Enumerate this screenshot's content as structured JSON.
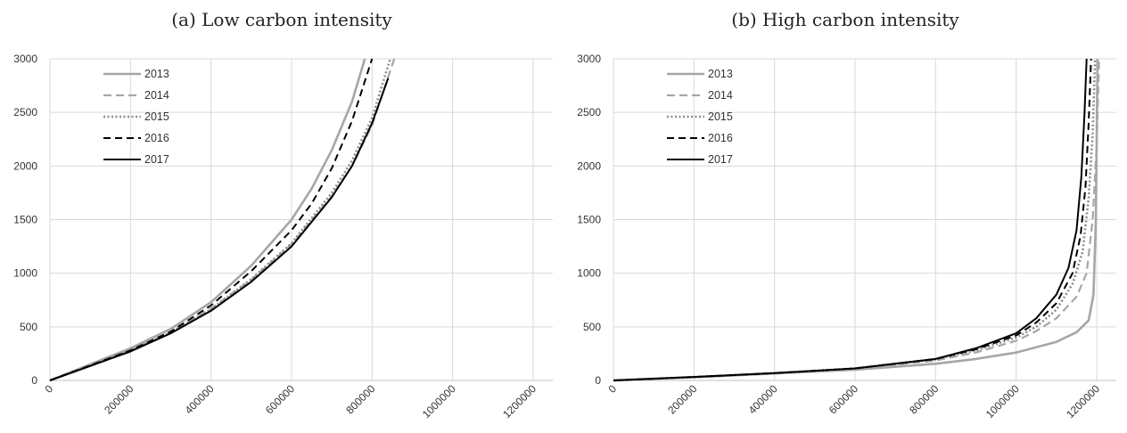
{
  "chart_data": [
    {
      "type": "line",
      "title": "(a) Low carbon intensity",
      "xlabel": "",
      "ylabel": "",
      "xlim": [
        0,
        1200000
      ],
      "ylim": [
        0,
        3000
      ],
      "xticks": [
        0,
        200000,
        400000,
        600000,
        800000,
        1000000,
        1200000
      ],
      "yticks": [
        0,
        500,
        1000,
        1500,
        2000,
        2500,
        3000
      ],
      "grid": true,
      "legend": "top-left",
      "series": [
        {
          "name": "2013",
          "style": "solid-gray",
          "x": [
            0,
            100000,
            200000,
            300000,
            400000,
            500000,
            600000,
            650000,
            700000,
            750000,
            782000
          ],
          "y": [
            0,
            150,
            300,
            480,
            730,
            1070,
            1500,
            1790,
            2150,
            2600,
            3000
          ]
        },
        {
          "name": "2014",
          "style": "dashed-gray",
          "x": [
            0,
            100000,
            200000,
            300000,
            400000,
            500000,
            600000,
            700000,
            750000,
            800000,
            855000
          ],
          "y": [
            0,
            140,
            280,
            450,
            670,
            940,
            1270,
            1720,
            2000,
            2380,
            3000
          ]
        },
        {
          "name": "2015",
          "style": "dotted-gray",
          "x": [
            0,
            100000,
            200000,
            300000,
            400000,
            500000,
            600000,
            700000,
            750000,
            800000,
            845000
          ],
          "y": [
            0,
            140,
            280,
            445,
            665,
            945,
            1280,
            1750,
            2050,
            2450,
            3000
          ]
        },
        {
          "name": "2016",
          "style": "dashed-black",
          "x": [
            0,
            100000,
            200000,
            300000,
            400000,
            500000,
            600000,
            650000,
            700000,
            750000,
            800000
          ],
          "y": [
            0,
            140,
            280,
            455,
            700,
            1020,
            1400,
            1650,
            1980,
            2420,
            3000
          ]
        },
        {
          "name": "2017",
          "style": "solid-black",
          "x": [
            0,
            100000,
            200000,
            300000,
            400000,
            500000,
            600000,
            700000,
            750000,
            800000,
            840000
          ],
          "y": [
            0,
            135,
            270,
            440,
            650,
            920,
            1250,
            1710,
            2000,
            2400,
            2820
          ]
        }
      ]
    },
    {
      "type": "line",
      "title": "(b) High carbon intensity",
      "xlabel": "",
      "ylabel": "",
      "xlim": [
        0,
        1200000
      ],
      "ylim": [
        0,
        3000
      ],
      "xticks": [
        0,
        200000,
        400000,
        600000,
        800000,
        1000000,
        1200000
      ],
      "yticks": [
        0,
        500,
        1000,
        1500,
        2000,
        2500,
        3000
      ],
      "grid": true,
      "legend": "top-left",
      "series": [
        {
          "name": "2013",
          "style": "solid-gray",
          "x": [
            0,
            200000,
            400000,
            600000,
            800000,
            900000,
            1000000,
            1100000,
            1150000,
            1180000,
            1192000,
            1198000,
            1202000
          ],
          "y": [
            0,
            30,
            65,
            100,
            155,
            200,
            260,
            360,
            450,
            560,
            800,
            1500,
            3000
          ]
        },
        {
          "name": "2014",
          "style": "dashed-gray",
          "x": [
            0,
            200000,
            400000,
            600000,
            800000,
            900000,
            1000000,
            1050000,
            1100000,
            1150000,
            1175000,
            1190000,
            1200000,
            1206000
          ],
          "y": [
            0,
            32,
            68,
            110,
            185,
            260,
            370,
            460,
            580,
            780,
            1000,
            1500,
            2200,
            3000
          ]
        },
        {
          "name": "2015",
          "style": "dotted-gray",
          "x": [
            0,
            200000,
            400000,
            600000,
            800000,
            900000,
            1000000,
            1050000,
            1100000,
            1140000,
            1165000,
            1180000,
            1190000,
            1196000
          ],
          "y": [
            0,
            32,
            68,
            112,
            195,
            280,
            400,
            500,
            660,
            900,
            1200,
            1700,
            2300,
            3000
          ]
        },
        {
          "name": "2016",
          "style": "dashed-black",
          "x": [
            0,
            200000,
            400000,
            600000,
            800000,
            900000,
            1000000,
            1050000,
            1100000,
            1140000,
            1160000,
            1172000,
            1180000,
            1186000
          ],
          "y": [
            0,
            32,
            68,
            112,
            200,
            290,
            420,
            540,
            720,
            1000,
            1350,
            1800,
            2400,
            3000
          ]
        },
        {
          "name": "2017",
          "style": "solid-black",
          "x": [
            0,
            200000,
            400000,
            600000,
            800000,
            900000,
            1000000,
            1050000,
            1100000,
            1130000,
            1150000,
            1162000,
            1170000,
            1175000
          ],
          "y": [
            0,
            32,
            68,
            112,
            200,
            300,
            440,
            580,
            800,
            1050,
            1400,
            1900,
            2500,
            3000
          ]
        }
      ]
    }
  ]
}
